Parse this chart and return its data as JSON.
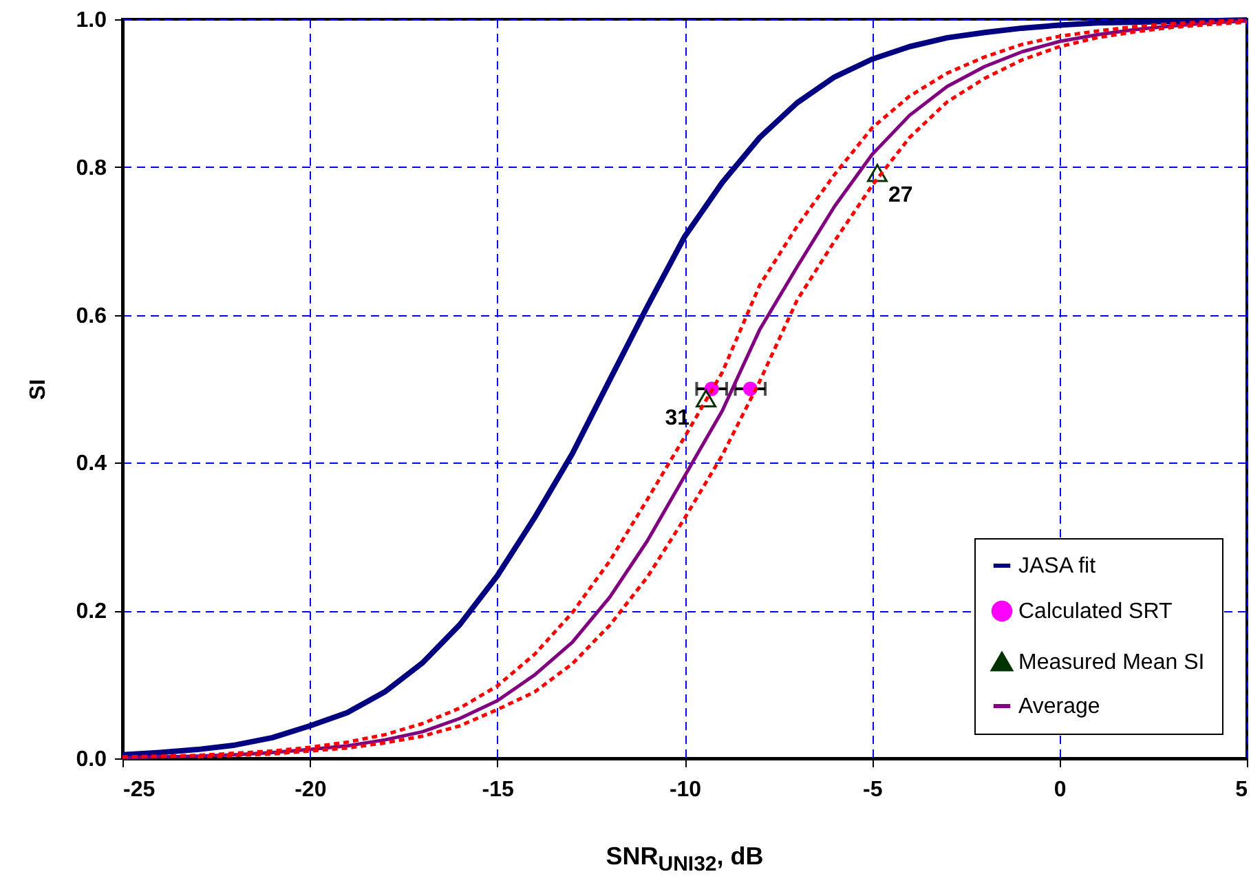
{
  "chart_data": {
    "type": "line",
    "xlabel": "SNR$_{UNI32}$, dB",
    "ylabel": "SI",
    "x": [
      -25,
      -24,
      -23,
      -22,
      -21,
      -20,
      -19,
      -18,
      -17,
      -16,
      -15,
      -14,
      -13,
      -12,
      -11,
      -10,
      -9,
      -8,
      -7,
      -6,
      -5,
      -4,
      -3,
      -2,
      -1,
      0,
      1,
      2,
      3,
      4,
      5
    ],
    "series": [
      {
        "name": "JASA fit",
        "color": "#000080",
        "values": [
          0.005,
          0.008,
          0.012,
          0.018,
          0.028,
          0.044,
          0.062,
          0.09,
          0.129,
          0.181,
          0.247,
          0.326,
          0.412,
          0.512,
          0.611,
          0.706,
          0.779,
          0.84,
          0.887,
          0.922,
          0.946,
          0.963,
          0.975,
          0.982,
          0.988,
          0.992,
          0.995,
          0.996,
          0.997,
          0.998,
          0.999
        ]
      },
      {
        "name": "Calculated SRT",
        "type": "scatter",
        "marker": "circle",
        "color": "#ff00ff",
        "x": [
          -9.28,
          -8.25
        ],
        "values": [
          0.5,
          0.5
        ],
        "xerrors": [
          0.4,
          0.4
        ]
      },
      {
        "name": "Measured Mean SI",
        "type": "scatter",
        "marker": "triangle",
        "color": "#003300",
        "x": [
          -9.43,
          -4.86
        ],
        "values": [
          0.487,
          0.792
        ]
      },
      {
        "name": "Average",
        "color": "#800080",
        "values": [
          0.001,
          0.002,
          0.003,
          0.005,
          0.008,
          0.012,
          0.017,
          0.025,
          0.036,
          0.054,
          0.078,
          0.113,
          0.157,
          0.218,
          0.294,
          0.382,
          0.47,
          0.58,
          0.665,
          0.747,
          0.817,
          0.87,
          0.909,
          0.936,
          0.956,
          0.97,
          0.979,
          0.986,
          0.991,
          0.995,
          0.998
        ]
      },
      {
        "color": "#ff0000",
        "line_style": "dashed",
        "values": [
          0.002,
          0.003,
          0.004,
          0.007,
          0.01,
          0.015,
          0.022,
          0.032,
          0.047,
          0.068,
          0.098,
          0.141,
          0.197,
          0.267,
          0.35,
          0.435,
          0.522,
          0.64,
          0.72,
          0.79,
          0.853,
          0.896,
          0.927,
          0.949,
          0.966,
          0.977,
          0.984,
          0.99,
          0.994,
          0.997,
          0.999
        ]
      },
      {
        "color": "#ff0000",
        "line_style": "dashed",
        "x": [
          -23,
          -22,
          -21,
          -20,
          -19,
          -18,
          -17,
          -16,
          -15,
          -14,
          -13,
          -12,
          -11,
          -10,
          -9,
          -8,
          -7,
          -6,
          -5,
          -4,
          -3,
          -2,
          -1,
          0,
          1,
          2,
          3,
          4,
          5
        ],
        "values": [
          0.002,
          0.004,
          0.006,
          0.01,
          0.014,
          0.021,
          0.03,
          0.044,
          0.066,
          0.09,
          0.128,
          0.18,
          0.245,
          0.325,
          0.41,
          0.51,
          0.62,
          0.7,
          0.775,
          0.84,
          0.888,
          0.92,
          0.945,
          0.963,
          0.975,
          0.983,
          0.989,
          0.993,
          0.996
        ]
      }
    ],
    "annotations": [
      {
        "text": "31",
        "x": -9.43,
        "y": 0.487
      },
      {
        "text": "27",
        "x": -4.86,
        "y": 0.792
      }
    ],
    "xlim": [
      -25,
      5
    ],
    "xticks": [
      -25,
      -20,
      -15,
      -10,
      -5,
      0,
      5
    ],
    "ylim": [
      0,
      1
    ],
    "yticks": [
      {
        "value": 0,
        "label": "0.0"
      },
      {
        "value": 0.2,
        "label": "0.2"
      },
      {
        "value": 0.4,
        "label": "0.4"
      },
      {
        "value": 0.6,
        "label": "0.6"
      },
      {
        "value": 0.8,
        "label": "0.8"
      },
      {
        "value": 1,
        "label": "1.0"
      }
    ],
    "grid": true,
    "legend": "bottom right",
    "marker": "none",
    "line_style": "solid"
  }
}
